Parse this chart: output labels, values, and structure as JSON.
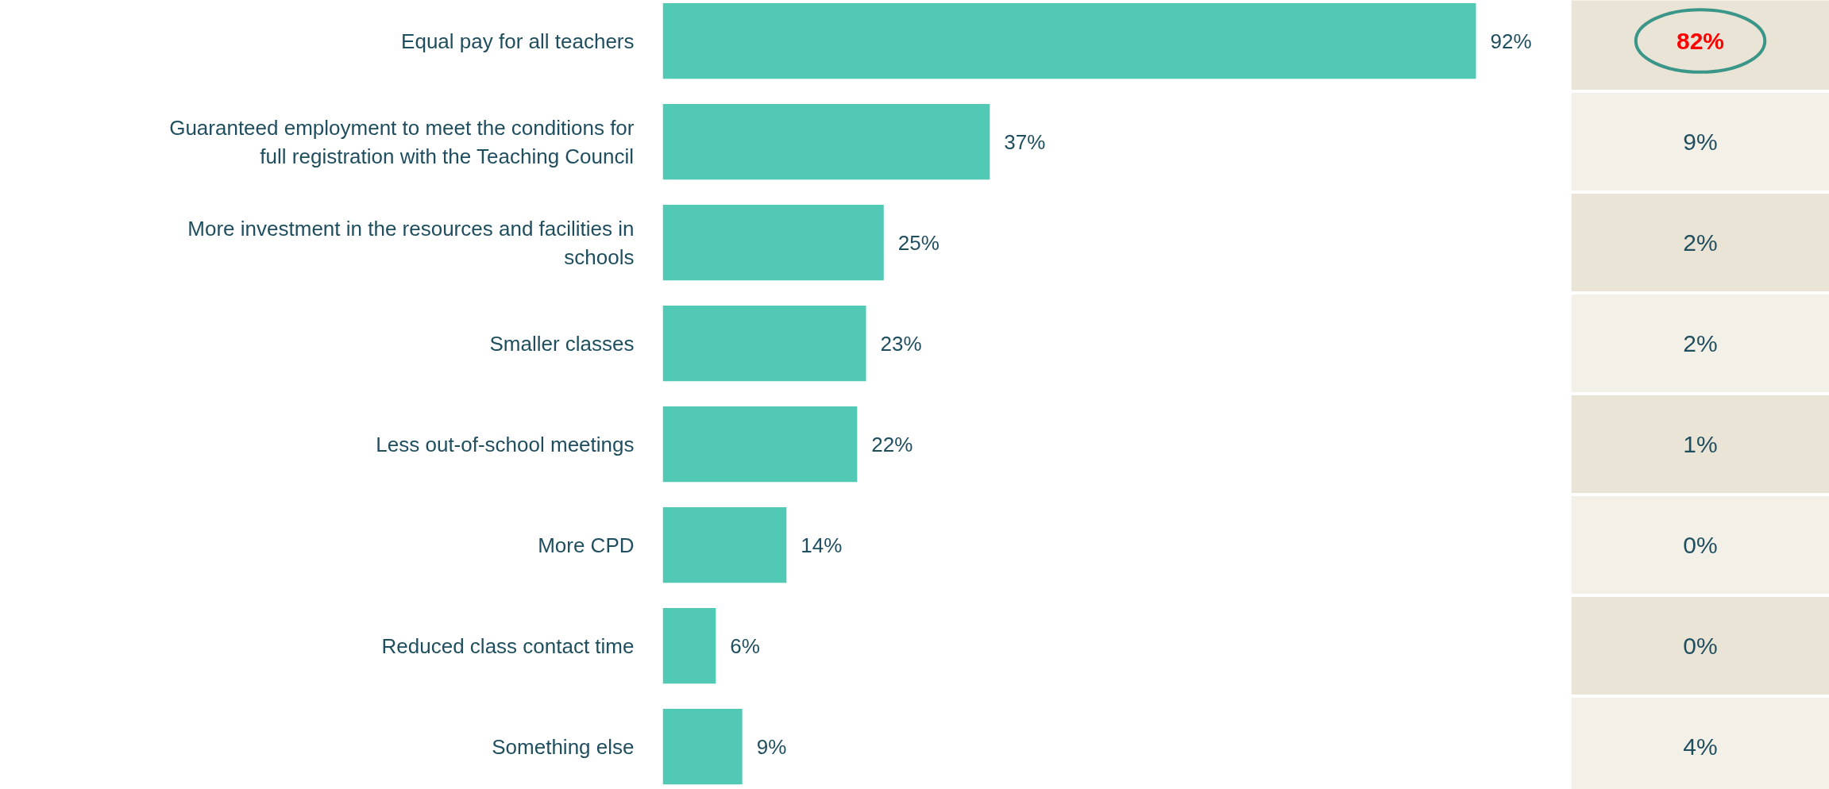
{
  "chart_data": [
    {
      "type": "bar",
      "orientation": "horizontal",
      "categories": [
        "Equal pay for all teachers",
        "Guaranteed employment to meet the conditions for\nfull registration with the Teaching Council",
        "More investment in the resources and facilities in\nschools",
        "Smaller classes",
        "Less out-of-school meetings",
        "More CPD",
        "Reduced class contact time",
        "Something else"
      ],
      "values": [
        92,
        37,
        25,
        23,
        22,
        14,
        6,
        9
      ],
      "value_labels": [
        "92%",
        "37%",
        "25%",
        "23%",
        "22%",
        "14%",
        "6%",
        "9%"
      ],
      "color": "#52c9b4",
      "tick_labels": "y"
    },
    {
      "type": "other",
      "annotations": [
        "82%",
        "9%",
        "2%",
        "2%",
        "1%",
        "0%",
        "0%",
        "4%"
      ],
      "colors": [
        "#eae4d6",
        "#f3f0e8",
        "#eae4d6",
        "#f3f0e8",
        "#eae4d6",
        "#f3f0e8",
        "#eae4d6",
        "#f3f0e8"
      ]
    }
  ]
}
